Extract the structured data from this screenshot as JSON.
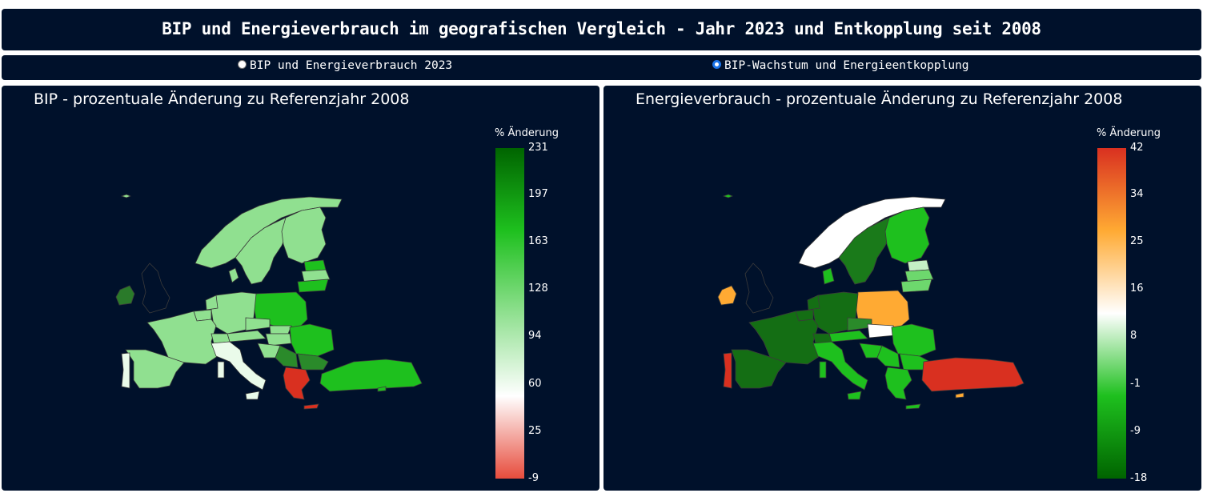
{
  "header": {
    "title": "BIP und Energieverbrauch im geografischen Vergleich - Jahr 2023 und Entkopplung seit 2008"
  },
  "radio": {
    "options": [
      {
        "label": "BIP und Energieverbrauch 2023",
        "selected": false
      },
      {
        "label": "BIP-Wachstum und Energieentkopplung",
        "selected": true
      }
    ]
  },
  "panels": [
    {
      "title": "BIP - prozentuale Änderung zu Referenzjahr 2008",
      "colorbar": {
        "title": "% Änderung",
        "ticks": [
          "231",
          "197",
          "163",
          "128",
          "94",
          "60",
          "25",
          "-9"
        ],
        "colors": [
          "#e74c3c",
          "#ffffff",
          "#90e090",
          "#1ec01e",
          "#006400"
        ]
      }
    },
    {
      "title": "Energieverbrauch - prozentuale Änderung zu Referenzjahr 2008",
      "colorbar": {
        "title": "% Änderung",
        "ticks": [
          "42",
          "34",
          "25",
          "16",
          "8",
          "-1",
          "-9",
          "-18"
        ],
        "colors": [
          "#006400",
          "#1ec01e",
          "#ffffff",
          "#ffaa33",
          "#d93020"
        ]
      }
    }
  ],
  "colors": {
    "background": "#00112b",
    "accent": "#1a73e8"
  }
}
